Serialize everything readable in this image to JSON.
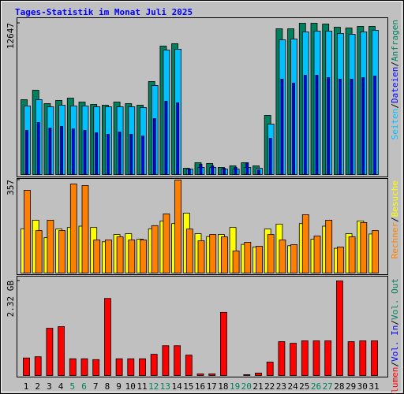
{
  "chart_data": [
    {
      "type": "bar",
      "title": "Tages-Statistik im Monat Juli 2025",
      "separator": "/",
      "ylim": [
        0,
        12647
      ],
      "yticks": [
        12647
      ],
      "series": [
        {
          "name": "Anfragen",
          "color": "#00805c",
          "values": [
            6258,
            7048,
            5928,
            6192,
            6389,
            6060,
            5862,
            5797,
            6060,
            5928,
            5797,
            7773,
            10737,
            10934,
            527,
            988,
            922,
            593,
            725,
            988,
            725,
            4940,
            12186,
            12186,
            12647,
            12647,
            12581,
            12318,
            12252,
            12384,
            12384
          ]
        },
        {
          "name": "Dateien",
          "color": "#0000ff",
          "values": [
            3689,
            4347,
            3886,
            4018,
            3820,
            3689,
            3491,
            3359,
            3557,
            3359,
            3227,
            4677,
            6126,
            5994,
            461,
            856,
            725,
            527,
            593,
            988,
            395,
            3030,
            7970,
            7641,
            8300,
            8300,
            8102,
            7970,
            7970,
            8102,
            8234
          ]
        },
        {
          "name": "Seiten",
          "color": "#00c0ff",
          "values": [
            5731,
            6258,
            5665,
            5797,
            5731,
            5731,
            5665,
            5665,
            5665,
            5665,
            5599,
            7443,
            10407,
            10473,
            461,
            593,
            593,
            461,
            461,
            593,
            527,
            4216,
            11264,
            11330,
            11922,
            11988,
            11988,
            11791,
            11725,
            11922,
            12054
          ]
        }
      ]
    },
    {
      "type": "bar",
      "ylim": [
        0,
        357
      ],
      "yticks": [
        357
      ],
      "series": [
        {
          "name": "Besuche",
          "color": "#ffff00",
          "values": [
            170,
            203,
            136,
            169,
            175,
            180,
            175,
            120,
            148,
            151,
            130,
            170,
            200,
            190,
            230,
            151,
            140,
            148,
            175,
            110,
            100,
            169,
            188,
            105,
            190,
            130,
            180,
            95,
            151,
            200,
            150
          ]
        },
        {
          "name": "Rechner",
          "color": "#ff8000",
          "values": [
            318,
            163,
            203,
            163,
            342,
            336,
            127,
            127,
            139,
            127,
            127,
            182,
            227,
            357,
            169,
            124,
            148,
            139,
            85,
            118,
            103,
            148,
            127,
            109,
            224,
            142,
            203,
            100,
            139,
            194,
            163
          ]
        }
      ]
    },
    {
      "type": "bar",
      "ylim": [
        0,
        2.32
      ],
      "yticks": [
        {
          "value": 2.32,
          "label": "2.32 GB"
        }
      ],
      "categories": [
        "1",
        "2",
        "3",
        "4",
        "5",
        "6",
        "7",
        "8",
        "9",
        "10",
        "11",
        "12",
        "13",
        "14",
        "15",
        "16",
        "17",
        "18",
        "19",
        "20",
        "21",
        "22",
        "23",
        "24",
        "25",
        "26",
        "27",
        "28",
        "29",
        "30",
        "31"
      ],
      "category_colors": [
        "#000000",
        "#000000",
        "#000000",
        "#000000",
        "#00805c",
        "#00805c",
        "#000000",
        "#000000",
        "#000000",
        "#000000",
        "#000000",
        "#00805c",
        "#00805c",
        "#000000",
        "#000000",
        "#000000",
        "#000000",
        "#000000",
        "#00805c",
        "#00805c",
        "#000000",
        "#000000",
        "#000000",
        "#000000",
        "#000000",
        "#00805c",
        "#00805c",
        "#000000",
        "#000000",
        "#000000",
        "#000000"
      ],
      "series": [
        {
          "name": "Volumen",
          "color": "#ff0000",
          "values": [
            0.43,
            0.46,
            1.16,
            1.2,
            0.41,
            0.41,
            0.39,
            1.89,
            0.41,
            0.41,
            0.41,
            0.52,
            0.73,
            0.73,
            0.5,
            0.04,
            0.04,
            1.55,
            0,
            0.02,
            0.06,
            0.33,
            0.83,
            0.79,
            0.85,
            0.85,
            0.85,
            2.32,
            0.83,
            0.85,
            0.85
          ]
        }
      ],
      "legend_extra": [
        {
          "name": "Vol. In",
          "color": "#0000ff"
        },
        {
          "name": "Vol. Out",
          "color": "#00805c"
        }
      ]
    }
  ]
}
